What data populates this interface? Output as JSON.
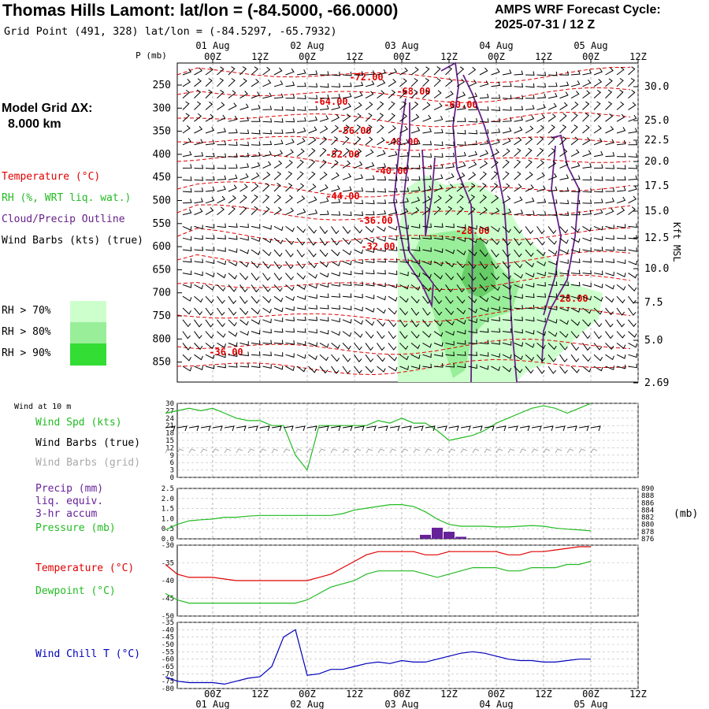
{
  "header": {
    "title": "Thomas Hills Lamont:  lat/lon = (-84.5000, -66.0000)",
    "subtitle": "Grid Point (491, 328) lat/lon = (-84.5297, -65.7932)",
    "cycle_line1": "AMPS WRF Forecast Cycle:",
    "cycle_line2": "2025-07-31 / 12  Z"
  },
  "model_grid": {
    "line1": "Model Grid ΔX:",
    "line2": "8.000 km"
  },
  "time_axis": {
    "dates": [
      {
        "label": "01 Aug",
        "tick": "00Z"
      },
      {
        "label": "02 Aug",
        "tick": "00Z"
      },
      {
        "label": "03 Aug",
        "tick": "00Z"
      },
      {
        "label": "04 Aug",
        "tick": "00Z"
      },
      {
        "label": "05 Aug",
        "tick": "00Z"
      }
    ],
    "tick_labels": [
      "00Z",
      "12Z",
      "00Z",
      "12Z",
      "00Z",
      "12Z",
      "00Z",
      "12Z",
      "00Z",
      "12Z"
    ],
    "date_labels": [
      "01 Aug",
      "02 Aug",
      "03 Aug",
      "04 Aug",
      "05 Aug"
    ]
  },
  "legend": {
    "temperature": "Temperature (°C)",
    "rh": "RH (%, WRT liq. wat.)",
    "cloud": "Cloud/Precip Outline",
    "wind": "Wind Barbs (kts) (true)",
    "rh70": "RH > 70%",
    "rh80": "RH > 80%",
    "rh90": "RH > 90%",
    "p_unit": "P (mb)",
    "kft_label": "Kft MSL"
  },
  "colors": {
    "temperature": "#e00000",
    "rh70": "#ccffcc",
    "rh80": "#99ee99",
    "rh90": "#33dd33",
    "cloud": "#662288",
    "wind_speed": "#22bb22",
    "dewpoint": "#22bb22",
    "precip": "#662299",
    "pressure": "#22bb22",
    "wind_chill": "#0000bb",
    "grid_barb": "#aaaaaa"
  },
  "panels": {
    "wind10m": {
      "title": "Wind at 10 m",
      "speed_label": "Wind Spd (kts)",
      "barbs_true": "Wind Barbs (true)",
      "barbs_grid": "Wind Barbs (grid)",
      "yticks": [
        "30",
        "27",
        "24",
        "21",
        "18",
        "15",
        "12",
        "9",
        "6",
        "3",
        "0"
      ]
    },
    "precip": {
      "label1": "Precip (mm)",
      "label2": "liq. equiv.",
      "label3": "3-hr accum",
      "pressure_label": "Pressure (mb)",
      "yticks_left": [
        "2.5",
        "2.0",
        "1.5",
        "1.0",
        "0.5",
        "0.0"
      ],
      "yticks_right": [
        "890",
        "888",
        "886",
        "884",
        "882",
        "880",
        "878",
        "876"
      ],
      "right_unit": "(mb)"
    },
    "temp": {
      "temp_label": "Temperature (°C)",
      "dew_label": "Dewpoint (°C)",
      "yticks": [
        "-30",
        "-35",
        "-40",
        "-45",
        "-50"
      ]
    },
    "chill": {
      "label": "Wind Chill T (°C)",
      "yticks": [
        "-35",
        "-40",
        "-45",
        "-50",
        "-55",
        "-60",
        "-65",
        "-70",
        "-75",
        "-80"
      ]
    }
  },
  "chart_data": [
    {
      "type": "line",
      "name_panel": "time-height cross section",
      "x_hours": [
        0,
        96
      ],
      "pressure_levels": [
        "250",
        "300",
        "350",
        "400",
        "450",
        "500",
        "550",
        "600",
        "650",
        "700",
        "750",
        "800",
        "850"
      ],
      "height_kft": [
        "30.0",
        "25.0",
        "22.5",
        "20.0",
        "17.5",
        "15.0",
        "12.5",
        "10.0",
        "7.5",
        "5.0",
        "2.69"
      ],
      "temperature_contour_labels": [
        "-72.00",
        "-68.00",
        "-60.00",
        "-64.00",
        "-56.00",
        "-48.00",
        "-52.00",
        "-40.00",
        "-44.00",
        "-36.00",
        "-28.00",
        "-32.00",
        "-28.00",
        "-36.00"
      ]
    },
    {
      "type": "line",
      "panel": "wind10m",
      "ylim": [
        0,
        30
      ],
      "x_hours": [
        -12,
        -9,
        -6,
        -3,
        0,
        3,
        6,
        9,
        12,
        15,
        18,
        21,
        24,
        27,
        30,
        33,
        36,
        39,
        42,
        45,
        48,
        51,
        54,
        57,
        60,
        63,
        66,
        69,
        72,
        75,
        78,
        81,
        84,
        87,
        90,
        93,
        96
      ],
      "series": [
        {
          "name": "Wind Spd (kts)",
          "values": [
            26,
            27,
            28,
            27,
            28,
            26,
            24,
            23,
            23,
            21,
            21,
            9,
            3,
            21,
            21,
            21,
            21,
            21,
            23,
            22,
            24,
            22,
            22,
            19,
            15,
            16,
            17,
            19,
            22,
            24,
            26,
            28,
            29,
            28,
            26,
            28,
            30
          ]
        }
      ]
    },
    {
      "type": "line",
      "panel": "pressure",
      "ylim": [
        876,
        890
      ],
      "x_hours": [
        -12,
        -9,
        -6,
        -3,
        0,
        3,
        6,
        9,
        12,
        15,
        18,
        21,
        24,
        27,
        30,
        33,
        36,
        39,
        42,
        45,
        48,
        51,
        54,
        57,
        60,
        63,
        66,
        69,
        72,
        75,
        78,
        81,
        84,
        87,
        90,
        93,
        96
      ],
      "series": [
        {
          "name": "Pressure (mb)",
          "values": [
            878.5,
            880,
            881,
            881.3,
            881.5,
            882,
            882,
            882.3,
            882.5,
            882.5,
            882.5,
            882.5,
            882.5,
            882.5,
            882.5,
            883,
            884,
            884.5,
            885,
            885.5,
            885.5,
            885,
            883.5,
            881.5,
            880,
            879.5,
            879.5,
            879.5,
            879.3,
            879.3,
            879.5,
            879.7,
            879.5,
            879,
            878.7,
            878.5,
            878.2
          ]
        }
      ]
    },
    {
      "type": "bar",
      "panel": "precip",
      "ylim": [
        0,
        2.5
      ],
      "x_hours": [
        54,
        57,
        60,
        63
      ],
      "values": [
        0.2,
        0.55,
        0.35,
        0.1
      ]
    },
    {
      "type": "line",
      "panel": "temp",
      "ylim": [
        -50,
        -28
      ],
      "x_hours": [
        -12,
        -9,
        -6,
        -3,
        0,
        3,
        6,
        9,
        12,
        15,
        18,
        21,
        24,
        27,
        30,
        33,
        36,
        39,
        42,
        45,
        48,
        51,
        54,
        57,
        60,
        63,
        66,
        69,
        72,
        75,
        78,
        81,
        84,
        87,
        90,
        93,
        96
      ],
      "series": [
        {
          "name": "Temperature (°C)",
          "values": [
            -34,
            -37,
            -38,
            -38,
            -38,
            -38.5,
            -39,
            -39,
            -39,
            -39,
            -39,
            -39,
            -39,
            -38,
            -37,
            -35,
            -33,
            -31,
            -30,
            -30,
            -30,
            -30,
            -31,
            -31,
            -30,
            -30,
            -30,
            -30,
            -30,
            -31,
            -31,
            -30,
            -30,
            -29.5,
            -29,
            -28.5,
            -28.5
          ]
        },
        {
          "name": "Dewpoint (°C)",
          "values": [
            -43,
            -45,
            -46,
            -46,
            -46,
            -46,
            -46,
            -46,
            -46,
            -46,
            -46,
            -46,
            -45,
            -43,
            -41,
            -40,
            -39,
            -37,
            -36,
            -36,
            -36,
            -36,
            -37,
            -38,
            -37,
            -36,
            -35,
            -35,
            -35,
            -36,
            -36,
            -35,
            -35,
            -35,
            -34,
            -34,
            -33
          ]
        }
      ]
    },
    {
      "type": "line",
      "panel": "chill",
      "ylim": [
        -80,
        -35
      ],
      "x_hours": [
        -12,
        -9,
        -6,
        -3,
        0,
        3,
        6,
        9,
        12,
        15,
        18,
        21,
        24,
        27,
        30,
        33,
        36,
        39,
        42,
        45,
        48,
        51,
        54,
        57,
        60,
        63,
        66,
        69,
        72,
        75,
        78,
        81,
        84,
        87,
        90,
        93,
        96
      ],
      "series": [
        {
          "name": "Wind Chill T (°C)",
          "values": [
            -72,
            -75,
            -76,
            -76,
            -76,
            -77,
            -75,
            -73,
            -72,
            -65,
            -45,
            -40,
            -71,
            -70,
            -67,
            -67,
            -65,
            -63,
            -62,
            -63,
            -61,
            -62,
            -62,
            -60,
            -58,
            -56,
            -55,
            -56,
            -58,
            -60,
            -61,
            -61,
            -62,
            -62,
            -61,
            -60,
            -60
          ]
        }
      ]
    }
  ]
}
